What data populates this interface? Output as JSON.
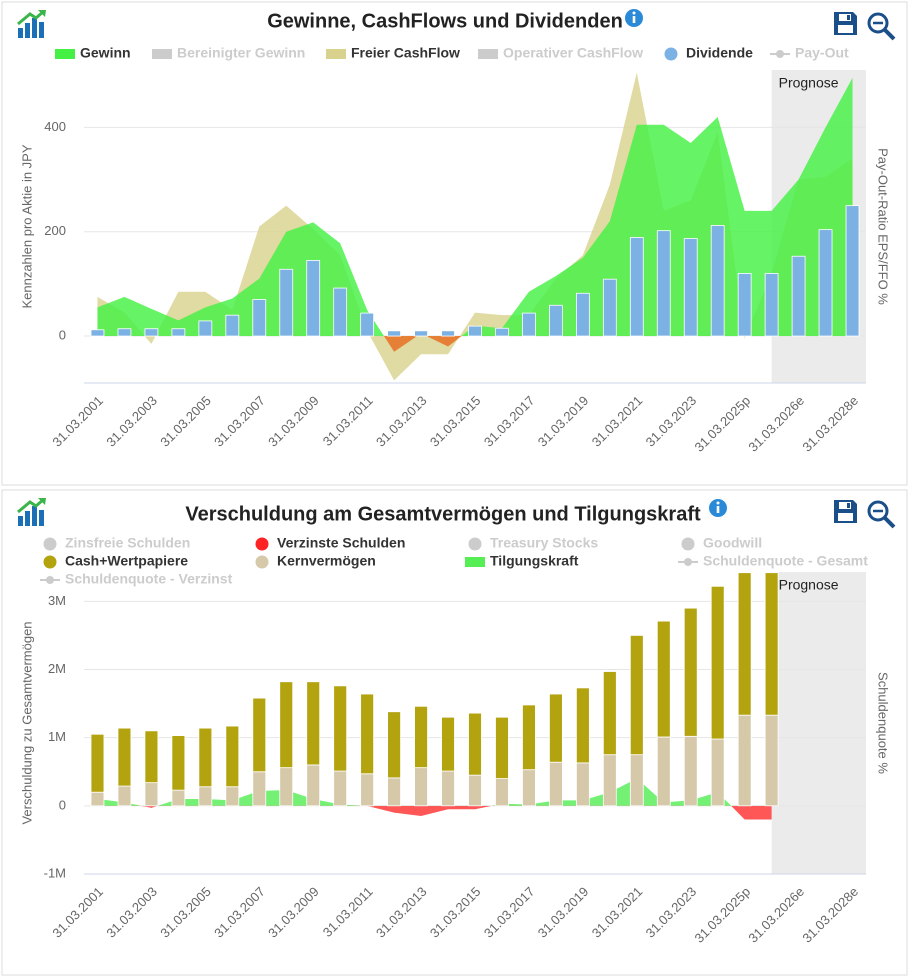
{
  "chart_data": [
    {
      "type": "combo",
      "title": "Gewinne, CashFlows und Dividenden",
      "ylabel": "Kennzahlen pro Aktie in JPY",
      "y2label": "Pay-Out-Ratio EPS/FFO %",
      "annotation": "Prognose",
      "categories": [
        "31.03.2001",
        null,
        "31.03.2003",
        null,
        "31.03.2005",
        null,
        "31.03.2007",
        null,
        "31.03.2009",
        null,
        "31.03.2011",
        null,
        "31.03.2013",
        null,
        "31.03.2015",
        null,
        "31.03.2017",
        null,
        "31.03.2019",
        null,
        "31.03.2021",
        null,
        "31.03.2023",
        null,
        "31.03.2025p",
        null,
        "31.03.2026e",
        null,
        "31.03.2028e"
      ],
      "ylim": [
        -90,
        510
      ],
      "yticks": [
        0,
        200,
        400
      ],
      "grid": true,
      "series": [
        {
          "name": "Gewinn",
          "type": "area",
          "color": "#44f044",
          "negative_color": "#e8762b",
          "values": [
            55,
            75,
            52,
            30,
            55,
            72,
            110,
            200,
            218,
            178,
            50,
            -30,
            5,
            -20,
            20,
            15,
            85,
            115,
            150,
            220,
            405,
            405,
            370,
            420,
            240,
            240,
            300,
            400,
            495
          ]
        },
        {
          "name": "Bereinigter Gewinn",
          "type": "area",
          "color": "#cccccc",
          "visible": false
        },
        {
          "name": "Freier CashFlow",
          "type": "area",
          "color": "#d9d28f",
          "values": [
            75,
            45,
            -15,
            85,
            85,
            50,
            210,
            250,
            205,
            155,
            10,
            -85,
            -35,
            -35,
            45,
            40,
            40,
            110,
            155,
            290,
            505,
            240,
            260,
            390,
            -5,
            120,
            300,
            305,
            340
          ]
        },
        {
          "name": "Operativer CashFlow",
          "type": "area",
          "color": "#cccccc",
          "visible": false
        },
        {
          "name": "Dividende",
          "type": "bar",
          "color": "#7cb1e4",
          "values": [
            12,
            14,
            14,
            14,
            29,
            40,
            70,
            128,
            145,
            92,
            44,
            10,
            10,
            10,
            19,
            15,
            44,
            59,
            82,
            109,
            189,
            202,
            187,
            212,
            120,
            120,
            153,
            204,
            250
          ]
        },
        {
          "name": "Pay-Out",
          "type": "line",
          "axis": "y2",
          "color": "#cccccc",
          "visible": false
        }
      ]
    },
    {
      "type": "combo",
      "title": "Verschuldung am Gesamtvermögen und Tilgungskraft",
      "ylabel": "Verschuldung zu Gesamtvermögen",
      "y2label": "Schuldenquote %",
      "annotation": "Prognose",
      "categories": [
        "31.03.2001",
        null,
        "31.03.2003",
        null,
        "31.03.2005",
        null,
        "31.03.2007",
        null,
        "31.03.2009",
        null,
        "31.03.2011",
        null,
        "31.03.2013",
        null,
        "31.03.2015",
        null,
        "31.03.2017",
        null,
        "31.03.2019",
        null,
        "31.03.2021",
        null,
        "31.03.2023",
        null,
        "31.03.2025p",
        null,
        "31.03.2026e",
        null,
        "31.03.2028e"
      ],
      "ylim": [
        -1000000,
        3430000
      ],
      "yticks": [
        {
          "value": -1000000,
          "label": "-1M"
        },
        0,
        {
          "value": 1000000,
          "label": "1M"
        },
        {
          "value": 2000000,
          "label": "2M"
        },
        {
          "value": 3000000,
          "label": "3M"
        }
      ],
      "grid": true,
      "series": [
        {
          "name": "Zinsfreie Schulden",
          "type": "bar",
          "color": "#cccccc",
          "visible": false
        },
        {
          "name": "Verzinste Schulden",
          "type": "bar",
          "color": "#ff2222"
        },
        {
          "name": "Treasury Stocks",
          "type": "bar",
          "color": "#cccccc",
          "visible": false
        },
        {
          "name": "Goodwill",
          "type": "bar",
          "color": "#cccccc",
          "visible": false
        },
        {
          "name": "Cash+Wertpapiere",
          "type": "bar",
          "color": "#b3a30f",
          "values": [
            850000,
            850000,
            760000,
            800000,
            860000,
            890000,
            1080000,
            1260000,
            1220000,
            1250000,
            1170000,
            970000,
            900000,
            790000,
            910000,
            900000,
            950000,
            1000000,
            1100000,
            1220000,
            1750000,
            1700000,
            1880000,
            2240000,
            2090000,
            2090000,
            null,
            null,
            null
          ]
        },
        {
          "name": "Kernvermögen",
          "type": "bar",
          "color": "#d6c9aa",
          "values": [
            200000,
            290000,
            340000,
            230000,
            280000,
            280000,
            500000,
            560000,
            600000,
            510000,
            470000,
            410000,
            560000,
            510000,
            450000,
            400000,
            530000,
            640000,
            630000,
            750000,
            750000,
            1010000,
            1020000,
            980000,
            1330000,
            1330000,
            null,
            null,
            null
          ]
        },
        {
          "name": "Tilgungskraft",
          "type": "area",
          "color": "#55ee55",
          "negative_color": "#ff4444",
          "values": [
            100000,
            50000,
            -30000,
            100000,
            100000,
            80000,
            220000,
            230000,
            100000,
            20000,
            0,
            -100000,
            -150000,
            -50000,
            -50000,
            30000,
            20000,
            80000,
            80000,
            200000,
            400000,
            50000,
            80000,
            200000,
            -200000,
            -200000,
            null,
            null,
            null
          ]
        },
        {
          "name": "Schuldenquote - Gesamt",
          "type": "line",
          "axis": "y2",
          "color": "#cccccc",
          "visible": false
        },
        {
          "name": "Schuldenquote - Verzinst",
          "type": "line",
          "axis": "y2",
          "color": "#cccccc",
          "visible": false
        }
      ]
    }
  ]
}
